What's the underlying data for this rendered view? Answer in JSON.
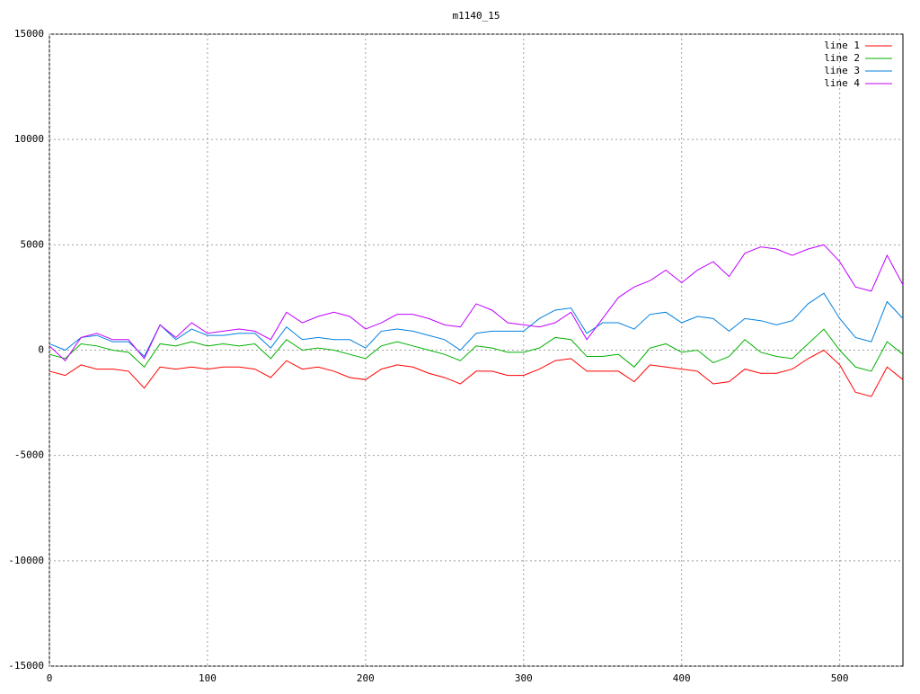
{
  "chart_data": {
    "type": "line",
    "title": "m1140_15",
    "x": [
      0,
      10,
      20,
      30,
      40,
      50,
      60,
      70,
      80,
      90,
      100,
      110,
      120,
      130,
      140,
      150,
      160,
      170,
      180,
      190,
      200,
      210,
      220,
      230,
      240,
      250,
      260,
      270,
      280,
      290,
      300,
      310,
      320,
      330,
      340,
      350,
      360,
      370,
      380,
      390,
      400,
      410,
      420,
      430,
      440,
      450,
      460,
      470,
      480,
      490,
      500,
      510,
      520,
      530,
      540
    ],
    "series": [
      {
        "name": "line 1",
        "color": "#ff0000",
        "values": [
          -1000,
          -1200,
          -700,
          -900,
          -900,
          -1000,
          -1800,
          -800,
          -900,
          -800,
          -900,
          -800,
          -800,
          -900,
          -1300,
          -500,
          -900,
          -800,
          -1000,
          -1300,
          -1400,
          -900,
          -700,
          -800,
          -1100,
          -1300,
          -1600,
          -1000,
          -1000,
          -1200,
          -1200,
          -900,
          -500,
          -400,
          -1000,
          -1000,
          -1000,
          -1500,
          -700,
          -800,
          -900,
          -1000,
          -1600,
          -1500,
          -900,
          -1100,
          -1100,
          -900,
          -400,
          0,
          -700,
          -2000,
          -2200,
          -800,
          -1400
        ]
      },
      {
        "name": "line 2",
        "color": "#00b000",
        "values": [
          -200,
          -400,
          300,
          200,
          0,
          -100,
          -800,
          300,
          200,
          400,
          200,
          300,
          200,
          300,
          -400,
          500,
          0,
          100,
          0,
          -200,
          -400,
          200,
          400,
          200,
          0,
          -200,
          -500,
          200,
          100,
          -100,
          -100,
          100,
          600,
          500,
          -300,
          -300,
          -200,
          -800,
          100,
          300,
          -100,
          0,
          -600,
          -300,
          500,
          -100,
          -300,
          -400,
          300,
          1000,
          0,
          -800,
          -1000,
          400,
          -200
        ]
      },
      {
        "name": "line 3",
        "color": "#0080e0",
        "values": [
          300,
          0,
          600,
          700,
          400,
          400,
          -300,
          1200,
          500,
          1000,
          700,
          700,
          800,
          800,
          100,
          1100,
          500,
          600,
          500,
          500,
          100,
          900,
          1000,
          900,
          700,
          500,
          0,
          800,
          900,
          900,
          900,
          1500,
          1900,
          2000,
          800,
          1300,
          1300,
          1000,
          1700,
          1800,
          1300,
          1600,
          1500,
          900,
          1500,
          1400,
          1200,
          1400,
          2200,
          2700,
          1500,
          600,
          400,
          2300,
          1500
        ]
      },
      {
        "name": "line 4",
        "color": "#c000ff",
        "values": [
          200,
          -500,
          600,
          800,
          500,
          500,
          -400,
          1200,
          600,
          1300,
          800,
          900,
          1000,
          900,
          500,
          1800,
          1300,
          1600,
          1800,
          1600,
          1000,
          1300,
          1700,
          1700,
          1500,
          1200,
          1100,
          2200,
          1900,
          1300,
          1200,
          1100,
          1300,
          1800,
          500,
          1500,
          2500,
          3000,
          3300,
          3800,
          3200,
          3800,
          4200,
          3500,
          4600,
          4900,
          4800,
          4500,
          4800,
          5000,
          4200,
          3000,
          2800,
          4500,
          3100
        ]
      }
    ],
    "xlim": [
      0,
      540
    ],
    "ylim": [
      -15000,
      15000
    ],
    "xticks": [
      0,
      100,
      200,
      300,
      400,
      500
    ],
    "yticks": [
      -15000,
      -10000,
      -5000,
      0,
      5000,
      10000,
      15000
    ],
    "grid": true,
    "legend": "top-right"
  }
}
